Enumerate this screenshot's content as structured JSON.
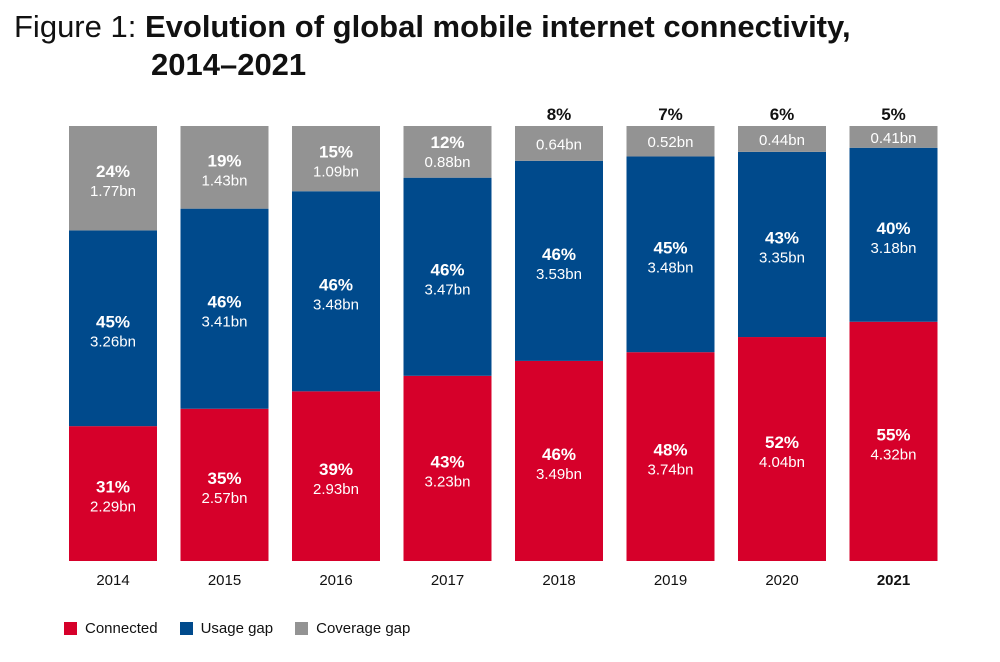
{
  "title": {
    "prefix": "Figure 1:",
    "line1": "Evolution of global mobile internet connectivity,",
    "line2": "2014–2021"
  },
  "colors": {
    "connected": "#d6002a",
    "usage_gap": "#004a8c",
    "coverage_gap": "#939393"
  },
  "chart_data": {
    "type": "bar",
    "stacked": true,
    "normalized": true,
    "categories": [
      "2014",
      "2015",
      "2016",
      "2017",
      "2018",
      "2019",
      "2020",
      "2021"
    ],
    "highlight_category": "2021",
    "series": [
      {
        "name": "Connected",
        "key": "connected",
        "percent": [
          31,
          35,
          39,
          43,
          46,
          48,
          52,
          55
        ],
        "pct_labels": [
          "31%",
          "35%",
          "39%",
          "43%",
          "46%",
          "48%",
          "52%",
          "55%"
        ],
        "values": [
          2.29,
          2.57,
          2.93,
          3.23,
          3.49,
          3.74,
          4.04,
          4.32
        ],
        "value_labels": [
          "2.29bn",
          "2.57bn",
          "2.93bn",
          "3.23bn",
          "3.49bn",
          "3.74bn",
          "4.04bn",
          "4.32bn"
        ]
      },
      {
        "name": "Usage gap",
        "key": "usage_gap",
        "percent": [
          45,
          46,
          46,
          46,
          46,
          45,
          43,
          40
        ],
        "pct_labels": [
          "45%",
          "46%",
          "46%",
          "46%",
          "46%",
          "45%",
          "43%",
          "40%"
        ],
        "values": [
          3.26,
          3.41,
          3.48,
          3.47,
          3.53,
          3.48,
          3.35,
          3.18
        ],
        "value_labels": [
          "3.26bn",
          "3.41bn",
          "3.48bn",
          "3.47bn",
          "3.53bn",
          "3.48bn",
          "3.35bn",
          "3.18bn"
        ]
      },
      {
        "name": "Coverage gap",
        "key": "coverage_gap",
        "percent": [
          24,
          19,
          15,
          12,
          8,
          7,
          6,
          5
        ],
        "pct_labels": [
          "24%",
          "19%",
          "15%",
          "12%",
          "8%",
          "7%",
          "6%",
          "5%"
        ],
        "values": [
          1.77,
          1.43,
          1.09,
          0.88,
          0.64,
          0.52,
          0.44,
          0.41
        ],
        "value_labels": [
          "1.77bn",
          "1.43bn",
          "1.09bn",
          "0.88bn",
          "0.64bn",
          "0.52bn",
          "0.44bn",
          "0.41bn"
        ]
      }
    ],
    "grid": false,
    "legend_position": "bottom-left"
  }
}
